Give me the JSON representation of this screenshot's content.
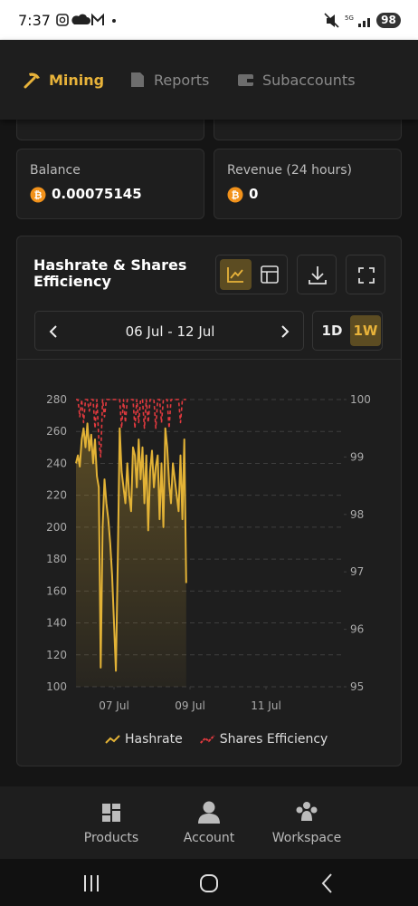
{
  "status_bar": {
    "time": "7:37",
    "battery": "98"
  },
  "tabs": [
    "Mining",
    "Reports",
    "Subaccounts"
  ],
  "cards": [
    {
      "label": "Balance",
      "value": "0.00075145"
    },
    {
      "label": "Revenue (24 hours)",
      "value": "0"
    }
  ],
  "chart_panel": {
    "date_range": "06 Jul - 12 Jul",
    "ranges": [
      "1D",
      "1W"
    ],
    "active_range": 1
  },
  "chart_data": {
    "type": "line",
    "title": "Hashrate & Shares Efficiency",
    "x": [
      0,
      0.05,
      0.1,
      0.15,
      0.2,
      0.25,
      0.3,
      0.35,
      0.4,
      0.45,
      0.5,
      0.55,
      0.6,
      0.65,
      0.7,
      0.75,
      0.8,
      0.85,
      0.9,
      0.95,
      1,
      1.05,
      1.1,
      1.15,
      1.2,
      1.25,
      1.3,
      1.35,
      1.4,
      1.45,
      1.5,
      1.55,
      1.6,
      1.65,
      1.7,
      1.75,
      1.8,
      1.85,
      1.9,
      1.95,
      2,
      2.05,
      2.1,
      2.15,
      2.2,
      2.25,
      2.3,
      2.35,
      2.4,
      2.45,
      2.5,
      2.55,
      2.6,
      2.65,
      2.7,
      2.75,
      2.8,
      2.85,
      2.9
    ],
    "series": [
      {
        "name": "Hashrate",
        "color": "#e2b236",
        "area": true,
        "values": [
          240,
          245,
          238,
          255,
          262,
          250,
          265,
          248,
          258,
          240,
          255,
          232,
          225,
          112,
          200,
          230,
          215,
          205,
          190,
          170,
          140,
          110,
          180,
          262,
          235,
          225,
          215,
          240,
          220,
          210,
          250,
          245,
          225,
          255,
          230,
          250,
          215,
          245,
          198,
          235,
          248,
          225,
          238,
          245,
          205,
          240,
          200,
          262,
          250,
          228,
          215,
          240,
          230,
          220,
          210,
          245,
          205,
          255,
          165
        ]
      },
      {
        "name": "Shares Efficiency",
        "color": "#e0393e",
        "axis": "y2",
        "dashed": true,
        "values": [
          100,
          100,
          99.7,
          100,
          99.6,
          100,
          100,
          99.8,
          100,
          100,
          99.5,
          100,
          99.3,
          99.0,
          100,
          99.7,
          100,
          100,
          100,
          100,
          100,
          100,
          100,
          100,
          99.5,
          100,
          99.6,
          100,
          100,
          100,
          100,
          99.5,
          100,
          99.6,
          100,
          100,
          99.5,
          100,
          99.6,
          100,
          100,
          100,
          99.5,
          100,
          100,
          99.6,
          100,
          100,
          100,
          99.5,
          100,
          100,
          100,
          100,
          100,
          99.6,
          100,
          100,
          100
        ]
      }
    ],
    "xlim": [
      0,
      7
    ],
    "xticks": [
      {
        "value": 1,
        "label": "07 Jul"
      },
      {
        "value": 3,
        "label": "09 Jul"
      },
      {
        "value": 5,
        "label": "11 Jul"
      }
    ],
    "ylim": [
      100,
      280
    ],
    "yticks": [
      100,
      120,
      140,
      160,
      180,
      200,
      220,
      240,
      260,
      280
    ],
    "y2lim": [
      95,
      100
    ],
    "y2ticks": [
      95,
      96,
      97,
      98,
      99,
      100
    ],
    "grid": true
  },
  "bottom_nav": [
    "Products",
    "Account",
    "Workspace"
  ]
}
